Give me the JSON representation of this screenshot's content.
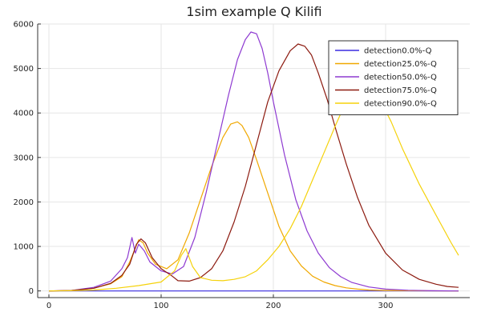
{
  "chart_data": {
    "type": "line",
    "title": "1sim example Q Kilifi",
    "xlabel": "",
    "ylabel": "",
    "xlim": [
      -10,
      375
    ],
    "ylim": [
      -150,
      6000
    ],
    "xticks": [
      0,
      100,
      200,
      300
    ],
    "yticks": [
      0,
      1000,
      2000,
      3000,
      4000,
      5000,
      6000
    ],
    "grid": true,
    "legend_position": "top-right",
    "series": [
      {
        "name": "detection0.0%-Q",
        "color": "#3a2be0",
        "x": [
          0,
          365
        ],
        "y": [
          0,
          0
        ]
      },
      {
        "name": "detection25.0%-Q",
        "color": "#f0a800",
        "x": [
          0,
          20,
          40,
          55,
          65,
          72,
          76,
          80,
          84,
          88,
          95,
          105,
          115,
          125,
          135,
          145,
          155,
          162,
          168,
          172,
          178,
          185,
          195,
          205,
          215,
          225,
          235,
          245,
          255,
          265,
          275,
          285,
          300,
          320,
          340,
          365
        ],
        "y": [
          0,
          10,
          60,
          160,
          320,
          650,
          900,
          1150,
          1080,
          850,
          600,
          500,
          700,
          1300,
          2050,
          2800,
          3450,
          3750,
          3800,
          3720,
          3450,
          2950,
          2200,
          1450,
          900,
          560,
          330,
          200,
          120,
          70,
          40,
          20,
          10,
          5,
          2,
          0
        ]
      },
      {
        "name": "detection50.0%-Q",
        "color": "#8e3ad1",
        "x": [
          0,
          20,
          40,
          55,
          65,
          70,
          74,
          77,
          80,
          85,
          90,
          100,
          110,
          120,
          130,
          140,
          150,
          160,
          168,
          175,
          180,
          185,
          190,
          195,
          200,
          210,
          220,
          230,
          240,
          250,
          260,
          270,
          285,
          300,
          320,
          340,
          365
        ],
        "y": [
          0,
          10,
          80,
          220,
          500,
          750,
          1200,
          850,
          1050,
          900,
          650,
          450,
          380,
          550,
          1200,
          2200,
          3300,
          4400,
          5200,
          5650,
          5820,
          5780,
          5450,
          4900,
          4250,
          3050,
          2050,
          1350,
          850,
          520,
          320,
          190,
          90,
          40,
          15,
          5,
          0
        ]
      },
      {
        "name": "detection75.0%-Q",
        "color": "#8c1a0f",
        "x": [
          0,
          20,
          40,
          55,
          65,
          72,
          78,
          82,
          86,
          92,
          100,
          110,
          115,
          125,
          135,
          145,
          155,
          165,
          175,
          185,
          195,
          205,
          215,
          222,
          228,
          234,
          240,
          248,
          256,
          265,
          275,
          285,
          300,
          315,
          330,
          345,
          355,
          365
        ],
        "y": [
          0,
          10,
          60,
          170,
          350,
          600,
          1050,
          1170,
          1080,
          750,
          500,
          330,
          230,
          220,
          300,
          500,
          900,
          1550,
          2350,
          3300,
          4250,
          4950,
          5400,
          5550,
          5500,
          5300,
          4900,
          4300,
          3600,
          2850,
          2100,
          1480,
          850,
          470,
          260,
          150,
          100,
          80
        ]
      },
      {
        "name": "detection90.0%-Q",
        "color": "#f5d20a",
        "x": [
          0,
          20,
          40,
          60,
          80,
          100,
          112,
          118,
          122,
          128,
          135,
          145,
          155,
          165,
          175,
          185,
          195,
          205,
          215,
          225,
          235,
          245,
          255,
          262,
          268,
          275,
          282,
          290,
          298,
          305,
          315,
          330,
          345,
          358,
          365
        ],
        "y": [
          0,
          5,
          20,
          60,
          120,
          200,
          450,
          800,
          950,
          550,
          300,
          240,
          230,
          260,
          320,
          450,
          700,
          1000,
          1400,
          1900,
          2500,
          3100,
          3700,
          4100,
          4350,
          4500,
          4520,
          4400,
          4150,
          3800,
          3200,
          2400,
          1700,
          1100,
          800
        ]
      }
    ]
  }
}
